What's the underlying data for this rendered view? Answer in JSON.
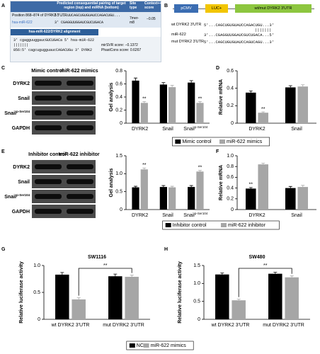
{
  "panel_labels": [
    "A",
    "B",
    "C",
    "D",
    "E",
    "F",
    "G",
    "H"
  ],
  "panel_a": {
    "header": [
      "Predicted consequential pairing of target region (top) and miRNA (bottom)",
      "Site type",
      "Context++ score"
    ],
    "target": "Position 868–874 of DYRK2 3'UTR",
    "target_seq": "5' ...UUCAGCUGUGUAUCCAGACUGU...",
    "mirna": "hsa-miR-622",
    "mirna_seq": "3' CGAGGUUGGAUCGUCUGACA",
    "site_type": "7mer-m8",
    "score": "−0.05",
    "alignment_title": "hsa-miR-622/DYRK2 alignment",
    "alignment": [
      "3' cgagguuggaucGUCUGACa 5' hsa-miR-622",
      "               |||||||",
      "856:5' cagcugugguaucCAGACUGu 3' DYRK2"
    ],
    "scores": [
      "mirSVR score: −0.1372",
      "PhastCons score: 0.6267"
    ]
  },
  "panel_b": {
    "boxes": [
      "pCMV",
      "LUC+",
      "wt/mut DYRK2 3'UTR"
    ],
    "sequences": [
      {
        "name": "wt DYRK2 3'UTR",
        "seq": "5'...CAGCUGUGUAUCCAGACUGU...3'"
      },
      {
        "name": "miR-622",
        "seq": "3'...CGAGGUUGGAUCGUCUGACA...5'"
      },
      {
        "name": "mut DYRK2 3'UTR",
        "seq": "5'...CAGCUGUGUAUCCAGUCAGU...3'"
      }
    ],
    "pairing": "|||||||"
  },
  "blots": [
    {
      "columns": [
        "Mimic control",
        "miR-622 mimics"
      ],
      "rows": [
        "DYRK2",
        "Snail",
        "Snail",
        "GAPDH"
      ],
      "row_sups": [
        null,
        null,
        "p-Ser104",
        null
      ]
    },
    {
      "columns": [
        "Inhibitor control",
        "miR-622 inhibitor"
      ],
      "rows": [
        "DYRK2",
        "Snail",
        "Snail",
        "GAPDH"
      ],
      "row_sups": [
        null,
        null,
        "p-Ser104",
        null
      ]
    }
  ],
  "chart_data": [
    {
      "type": "bar",
      "ylabel": "Gel analysis",
      "categories": [
        "DYRK2",
        "Snail",
        "Snail"
      ],
      "category_sup": [
        null,
        null,
        "p-Ser104"
      ],
      "ylim": [
        0,
        0.8
      ],
      "yticks": [
        0,
        0.2,
        0.4,
        0.6,
        0.8
      ],
      "series": [
        {
          "name": "Mimic control",
          "color": "#000000",
          "values": [
            0.65,
            0.59,
            0.62
          ],
          "errors": [
            0.04,
            0.03,
            0.03
          ]
        },
        {
          "name": "miR-622 mimics",
          "color": "#a6a6a6",
          "values": [
            0.31,
            0.55,
            0.31
          ],
          "errors": [
            0.02,
            0.03,
            0.02
          ],
          "marks": [
            "**",
            null,
            "**"
          ]
        }
      ]
    },
    {
      "type": "bar",
      "ylabel": "Relative mRNA",
      "categories": [
        "DYRK2",
        "Snail"
      ],
      "ylim": [
        0,
        0.6
      ],
      "yticks": [
        0,
        0.2,
        0.4,
        0.6
      ],
      "series": [
        {
          "color": "#000000",
          "values": [
            0.35,
            0.41
          ],
          "errors": [
            0.02,
            0.02
          ]
        },
        {
          "color": "#a6a6a6",
          "values": [
            0.12,
            0.42
          ],
          "errors": [
            0.01,
            0.02
          ],
          "marks": [
            "**",
            null
          ]
        }
      ]
    },
    {
      "type": "bar",
      "ylabel": "Gel analysis",
      "categories": [
        "DYRK2",
        "Snail",
        "Snail"
      ],
      "category_sup": [
        null,
        null,
        "p-Ser104"
      ],
      "ylim": [
        0,
        1.5
      ],
      "yticks": [
        0,
        0.5,
        {
          "value": 1,
          "label": "1.0"
        },
        1.5
      ],
      "series": [
        {
          "name": "Inhibitor control",
          "color": "#000000",
          "values": [
            0.62,
            0.63,
            0.63
          ],
          "errors": [
            0.03,
            0.04,
            0.04
          ]
        },
        {
          "name": "miR-622 inhibitor",
          "color": "#a6a6a6",
          "values": [
            1.12,
            0.62,
            1.06
          ],
          "errors": [
            0.04,
            0.03,
            0.03
          ],
          "marks": [
            "**",
            null,
            "**"
          ]
        }
      ]
    },
    {
      "type": "bar",
      "ylabel": "Relative mRNA",
      "categories": [
        "DYRK2",
        "Snail"
      ],
      "ylim": [
        0,
        1
      ],
      "yticks": [
        0,
        0.2,
        0.4,
        0.6,
        0.8,
        {
          "value": 1,
          "label": "1.0"
        }
      ],
      "series": [
        {
          "color": "#000000",
          "values": [
            0.39,
            0.4
          ],
          "errors": [
            0.02,
            0.03
          ],
          "marks": [
            "**",
            null
          ]
        },
        {
          "color": "#a6a6a6",
          "values": [
            0.84,
            0.42
          ],
          "errors": [
            0.02,
            0.03
          ]
        }
      ]
    },
    {
      "type": "bar",
      "title": "SW1116",
      "ylabel": "Relative luciferase activity",
      "categories": [
        "wt DYRK2 3'UTR",
        "mut DYRK2 3'UTR"
      ],
      "ylim": [
        0,
        1
      ],
      "yticks": [
        0,
        0.5,
        {
          "value": 1,
          "label": "1.0"
        }
      ],
      "bracket_label": "**",
      "series": [
        {
          "color": "#000000",
          "values": [
            0.83,
            0.8
          ],
          "errors": [
            0.04,
            0.04
          ]
        },
        {
          "color": "#a6a6a6",
          "values": [
            0.37,
            0.79
          ],
          "errors": [
            0.03,
            0.03
          ]
        }
      ]
    },
    {
      "type": "bar",
      "title": "SW480",
      "ylabel": "Relative luciferase activity",
      "categories": [
        "wt DYRK2 3'UTR",
        "mut DYRK2 3'UTR"
      ],
      "ylim": [
        0,
        1.5
      ],
      "yticks": [
        0,
        0.5,
        {
          "value": 1,
          "label": "1.0"
        },
        1.5
      ],
      "bracket_label": "**",
      "series": [
        {
          "name": "NC",
          "color": "#000000",
          "values": [
            1.25,
            1.27
          ],
          "errors": [
            0.04,
            0.04
          ]
        },
        {
          "name": "miR-622 mimics",
          "color": "#a6a6a6",
          "values": [
            0.53,
            1.17
          ],
          "errors": [
            0.03,
            0.04
          ]
        }
      ]
    }
  ]
}
